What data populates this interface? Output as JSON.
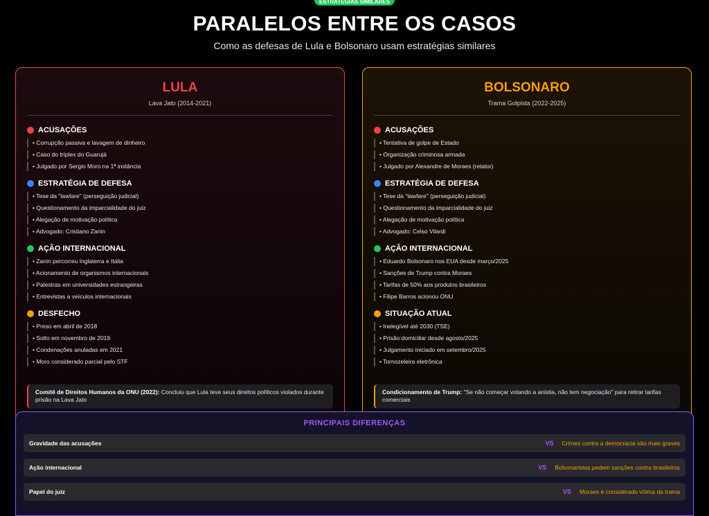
{
  "badge": "ESTRATÉGIAS SIMILARES",
  "title": "PARALELOS ENTRE OS CASOS",
  "subtitle": "Como as defesas de Lula e Bolsonaro usam estratégias similares",
  "colors": {
    "red": "#ef4444",
    "orange": "#f59e0b",
    "blue": "#3b82f6",
    "green": "#22c55e",
    "purple": "#a855f7"
  },
  "lula": {
    "name": "LULA",
    "period": "Lava Jato (2014-2021)",
    "sections": [
      {
        "icon": "red-dot-icon",
        "title": "ACUSAÇÕES",
        "items": [
          "• Corrupção passiva e lavagem de dinheiro",
          "• Caso do tríplex do Guarujá",
          "• Julgado por Sergio Moro na 1ª instância"
        ]
      },
      {
        "icon": "blue-dot-icon",
        "title": "ESTRATÉGIA DE DEFESA",
        "items": [
          "• Tese da \"lawfare\" (perseguição judicial)",
          "• Questionamento da imparcialidade do juiz",
          "• Alegação de motivação política",
          "• Advogado: Cristiano Zanin"
        ]
      },
      {
        "icon": "green-dot-icon",
        "title": "AÇÃO INTERNACIONAL",
        "items": [
          "• Zanin percorreu Inglaterra e Itália",
          "• Acionamento de organismos internacionais",
          "• Palestras em universidades estrangeiras",
          "• Entrevistas a veículos internacionais"
        ]
      },
      {
        "icon": "orange-dot-icon",
        "title": "DESFECHO",
        "items": [
          "• Preso em abril de 2018",
          "• Solto em novembro de 2019",
          "• Condenações anuladas em 2021",
          "• Moro considerado parcial pelo STF"
        ]
      }
    ],
    "note_bold": "Comitê de Direitos Humanos da ONU (2022):",
    "note_text": " Concluiu que Lula teve seus direitos políticos violados durante prisão na Lava Jato"
  },
  "bolsonaro": {
    "name": "BOLSONARO",
    "period": "Trama Golpista (2022-2025)",
    "sections": [
      {
        "icon": "red-dot-icon",
        "title": "ACUSAÇÕES",
        "items": [
          "• Tentativa de golpe de Estado",
          "• Organização criminosa armada",
          "• Julgado por Alexandre de Moraes (relator)"
        ]
      },
      {
        "icon": "blue-dot-icon",
        "title": "ESTRATÉGIA DE DEFESA",
        "items": [
          "• Tese da \"lawfare\" (perseguição judicial)",
          "• Questionamento da imparcialidade do juiz",
          "• Alegação de motivação política",
          "• Advogado: Celso Vilardi"
        ]
      },
      {
        "icon": "green-dot-icon",
        "title": "AÇÃO INTERNACIONAL",
        "items": [
          "• Eduardo Bolsonaro nos EUA desde março/2025",
          "• Sanções de Trump contra Moraes",
          "• Tarifas de 50% aos produtos brasileiros",
          "• Filipe Barros acionou ONU"
        ]
      },
      {
        "icon": "orange-dot-icon",
        "title": "SITUAÇÃO ATUAL",
        "items": [
          "• Inelegível até 2030 (TSE)",
          "• Prisão domiciliar desde agosto/2025",
          "• Julgamento iniciado em setembro/2025",
          "• Tornozeleira eletrônica"
        ]
      }
    ],
    "note_bold": "Condicionamento de Trump:",
    "note_text": " \"Se não começar votando a anistia, não tem negociação\" para retirar tarifas comerciais"
  },
  "differences": {
    "title": "PRINCIPAIS DIFERENÇAS",
    "vs": "VS",
    "rows": [
      {
        "label": "Gravidade das acusações",
        "desc": "Crimes contra a democracia são mais graves"
      },
      {
        "label": "Ação internacional",
        "desc": "Bolsonaristas pedem sanções contra brasileiros"
      },
      {
        "label": "Papel do juiz",
        "desc": "Moraes é considerado vítima da trama"
      }
    ]
  }
}
